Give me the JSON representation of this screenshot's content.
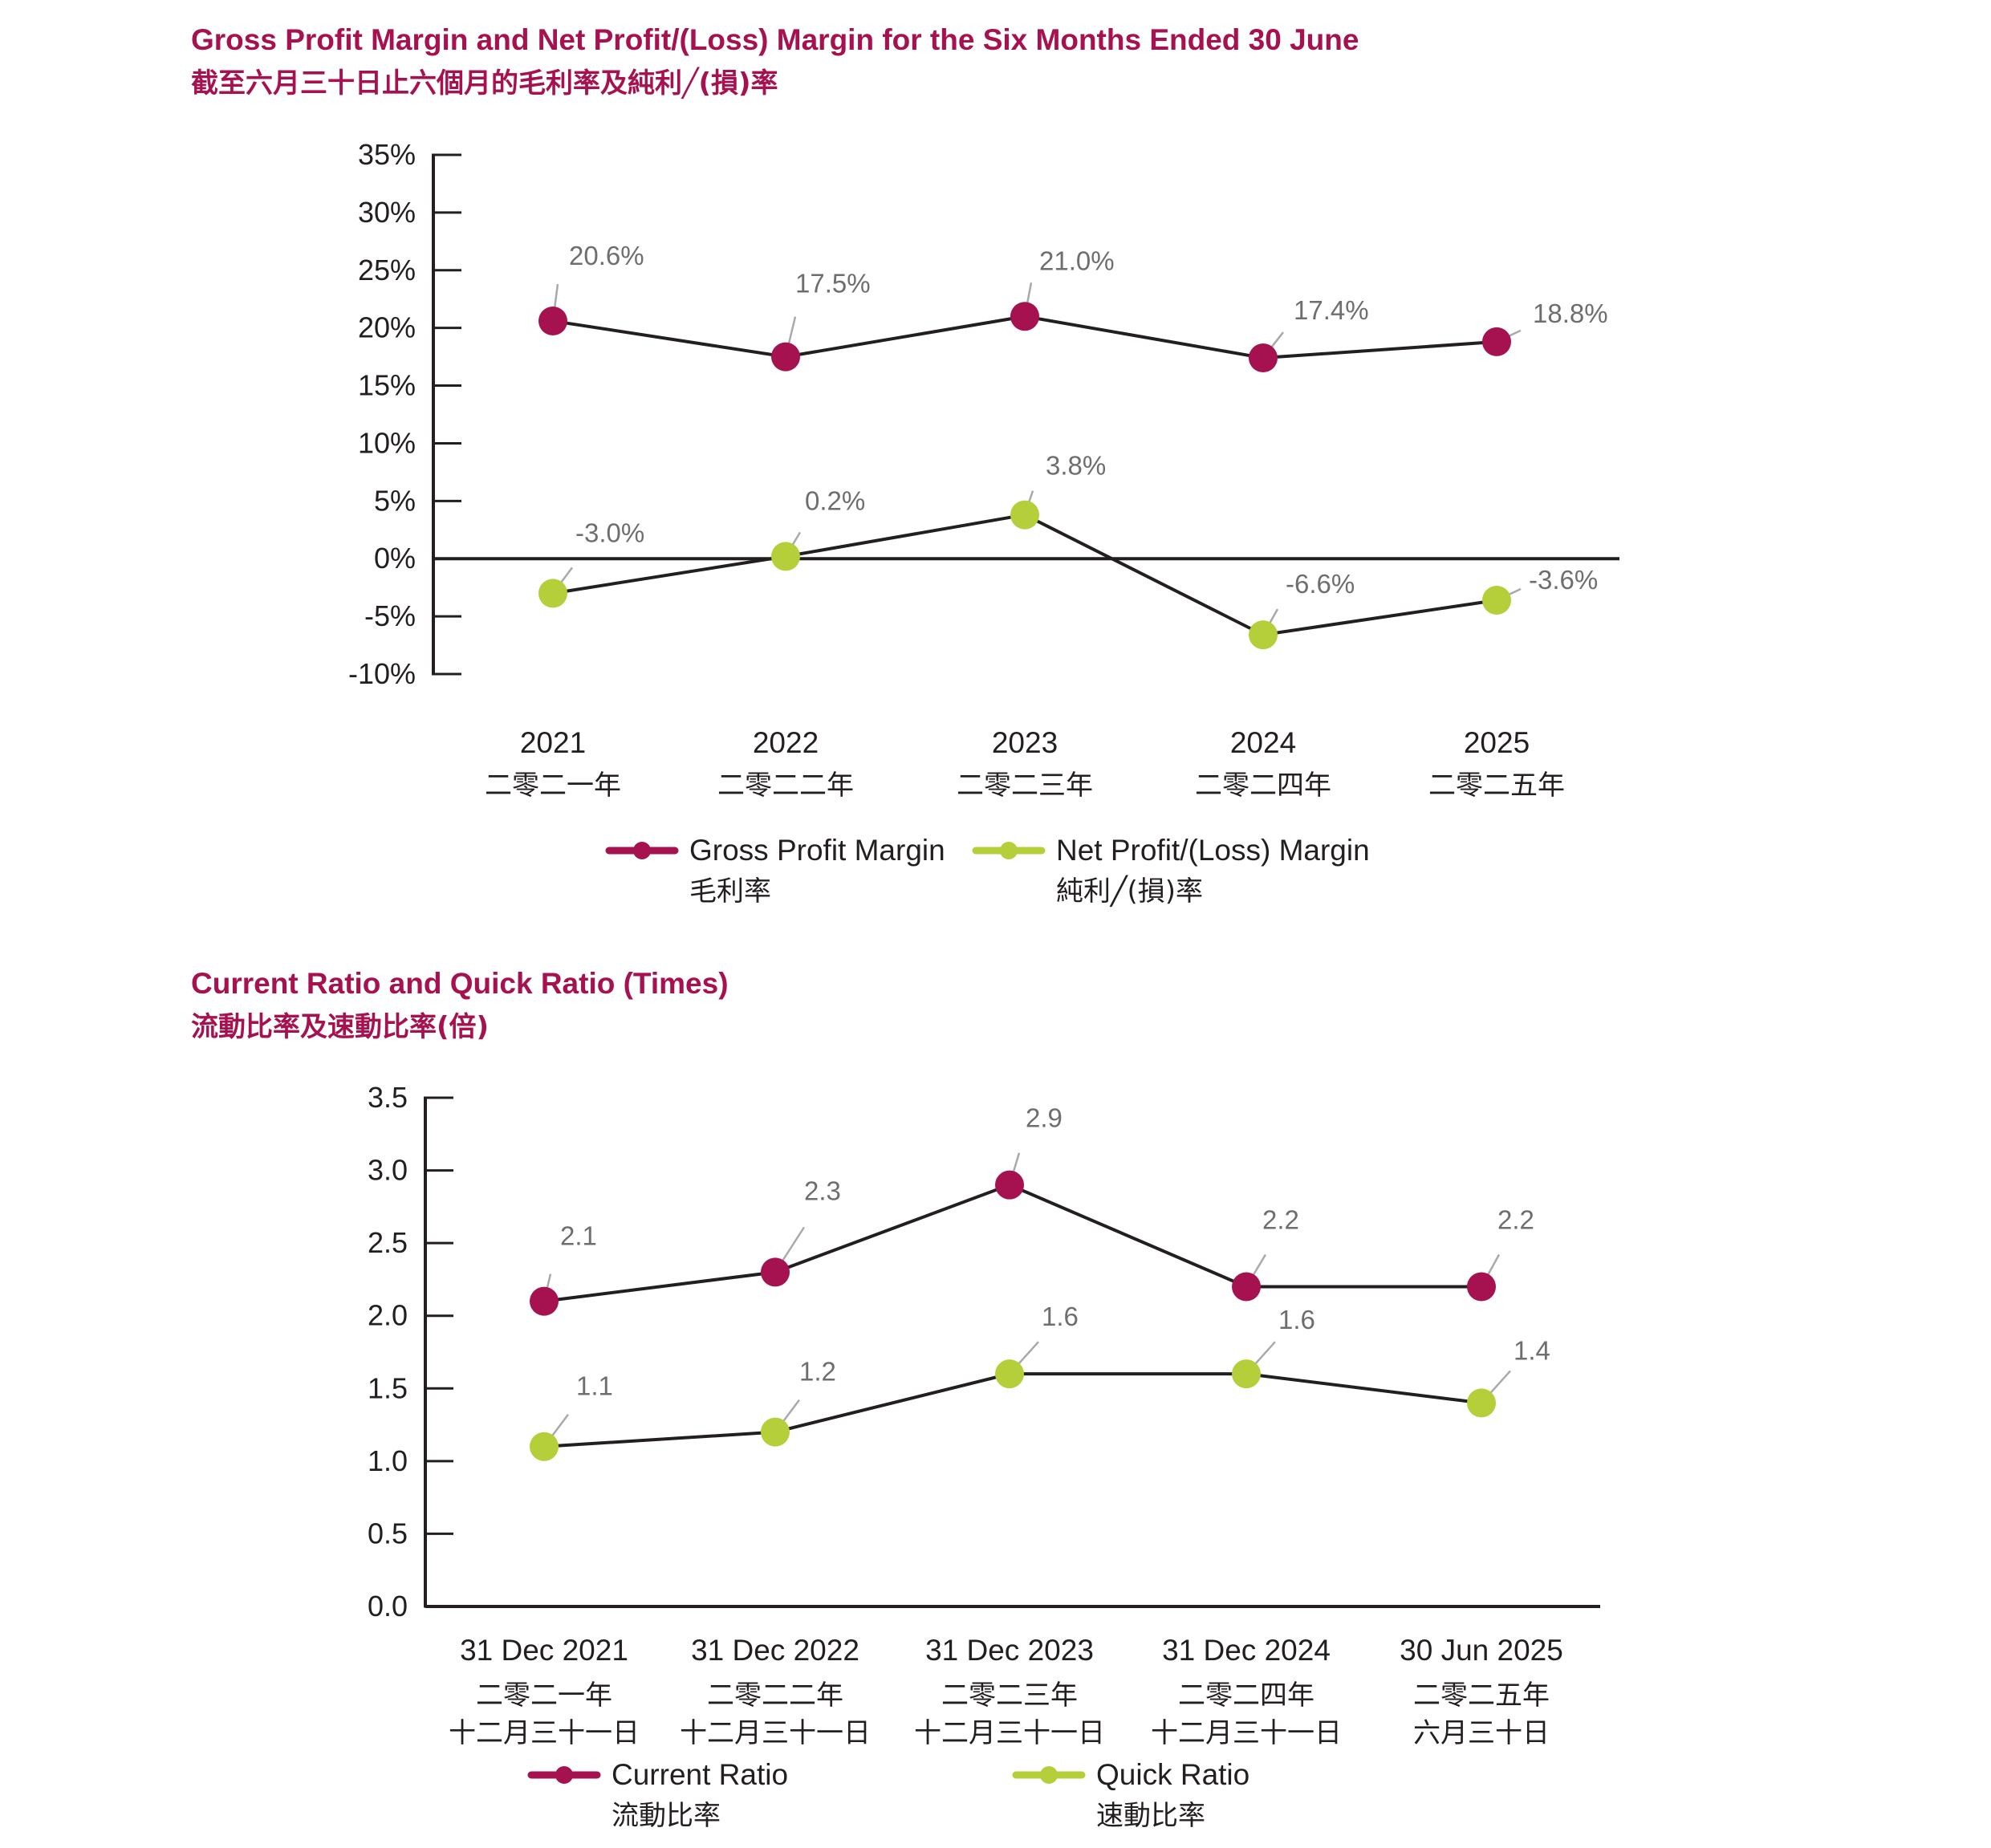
{
  "colors": {
    "title": "#a6114f",
    "primary": "#a6114f",
    "secondary": "#b4cf3a",
    "line": "#231f20",
    "label": "#6d6e70",
    "leader": "#a7a9ac"
  },
  "chart_data": [
    {
      "type": "line",
      "title": "Gross Profit Margin and Net Profit/(Loss) Margin for the Six Months Ended 30 June",
      "subtitle": "截至六月三十日止六個月的毛利率及純利╱(損)率",
      "categories": [
        "2021",
        "2022",
        "2023",
        "2024",
        "2025"
      ],
      "categories_zh": [
        "二零二一年",
        "二零二二年",
        "二零二三年",
        "二零二四年",
        "二零二五年"
      ],
      "ylim": [
        -10,
        35
      ],
      "yticks": [
        35,
        30,
        25,
        20,
        15,
        10,
        5,
        0,
        -5,
        -10
      ],
      "ytick_labels": [
        "35%",
        "30%",
        "25%",
        "20%",
        "15%",
        "10%",
        "5%",
        "0%",
        "-5%",
        "-10%"
      ],
      "value_suffix": "%",
      "series": [
        {
          "name": "Gross Profit Margin",
          "name_zh": "毛利率",
          "values": [
            20.6,
            17.5,
            21.0,
            17.4,
            18.8
          ],
          "labels": [
            "20.6%",
            "17.5%",
            "21.0%",
            "17.4%",
            "18.8%"
          ]
        },
        {
          "name": "Net Profit/(Loss) Margin",
          "name_zh": "純利╱(損)率",
          "values": [
            -3.0,
            0.2,
            3.8,
            -6.6,
            -3.6
          ],
          "labels": [
            "-3.0%",
            "0.2%",
            "3.8%",
            "-6.6%",
            "-3.6%"
          ]
        }
      ],
      "legend": "bottom"
    },
    {
      "type": "line",
      "title": "Current Ratio and Quick Ratio (Times)",
      "subtitle": "流動比率及速動比率(倍)",
      "categories": [
        "31 Dec 2021",
        "31 Dec 2022",
        "31 Dec 2023",
        "31 Dec 2024",
        "30 Jun 2025"
      ],
      "categories_zh": [
        "二零二一年",
        "二零二二年",
        "二零二三年",
        "二零二四年",
        "二零二五年"
      ],
      "categories_zh2": [
        "十二月三十一日",
        "十二月三十一日",
        "十二月三十一日",
        "十二月三十一日",
        "六月三十日"
      ],
      "ylim": [
        0,
        3.5
      ],
      "yticks": [
        3.5,
        3.0,
        2.5,
        2.0,
        1.5,
        1.0,
        0.5,
        0.0
      ],
      "ytick_labels": [
        "3.5",
        "3.0",
        "2.5",
        "2.0",
        "1.5",
        "1.0",
        "0.5",
        "0.0"
      ],
      "series": [
        {
          "name": "Current Ratio",
          "name_zh": "流動比率",
          "values": [
            2.1,
            2.3,
            2.9,
            2.2,
            2.2
          ],
          "labels": [
            "2.1",
            "2.3",
            "2.9",
            "2.2",
            "2.2"
          ]
        },
        {
          "name": "Quick Ratio",
          "name_zh": "速動比率",
          "values": [
            1.1,
            1.2,
            1.6,
            1.6,
            1.4
          ],
          "labels": [
            "1.1",
            "1.2",
            "1.6",
            "1.6",
            "1.4"
          ]
        }
      ],
      "legend": "bottom"
    }
  ]
}
